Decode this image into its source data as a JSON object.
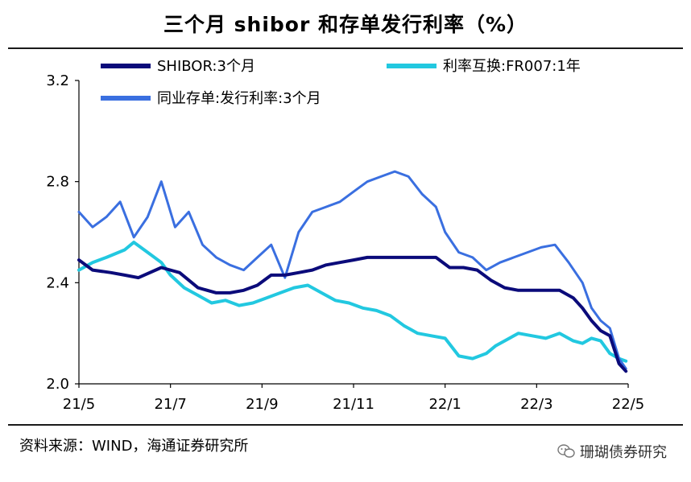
{
  "chart_data": {
    "type": "line",
    "title": "三个月 shibor 和存单发行利率（%）",
    "ylim": [
      2.0,
      3.2
    ],
    "yticks": [
      "2.0",
      "2.4",
      "2.8",
      "3.2"
    ],
    "xticks": [
      "21/5",
      "21/7",
      "21/9",
      "21/11",
      "22/1",
      "22/3",
      "22/5"
    ],
    "x_month_index_range": [
      0,
      12
    ],
    "legend_position": "top",
    "series": [
      {
        "name": "SHIBOR:3个月",
        "color": "#0b0b7a",
        "x": [
          0,
          0.3,
          0.7,
          1.0,
          1.3,
          1.8,
          2.2,
          2.6,
          3.0,
          3.3,
          3.6,
          3.9,
          4.2,
          4.5,
          4.8,
          5.1,
          5.4,
          5.7,
          6.0,
          6.3,
          6.6,
          6.9,
          7.2,
          7.5,
          7.8,
          8.1,
          8.4,
          8.7,
          9.0,
          9.3,
          9.6,
          9.9,
          10.2,
          10.5,
          10.8,
          11.0,
          11.2,
          11.4,
          11.6,
          11.8,
          11.95
        ],
        "y": [
          2.49,
          2.45,
          2.44,
          2.43,
          2.42,
          2.46,
          2.44,
          2.38,
          2.36,
          2.36,
          2.37,
          2.39,
          2.43,
          2.43,
          2.44,
          2.45,
          2.47,
          2.48,
          2.49,
          2.5,
          2.5,
          2.5,
          2.5,
          2.5,
          2.5,
          2.46,
          2.46,
          2.45,
          2.41,
          2.38,
          2.37,
          2.37,
          2.37,
          2.37,
          2.34,
          2.3,
          2.25,
          2.21,
          2.19,
          2.08,
          2.05
        ]
      },
      {
        "name": "利率互换:FR007:1年",
        "color": "#22c8e0",
        "x": [
          0,
          0.3,
          0.6,
          1.0,
          1.2,
          1.5,
          1.8,
          2.0,
          2.3,
          2.6,
          2.9,
          3.2,
          3.5,
          3.8,
          4.1,
          4.4,
          4.7,
          5.0,
          5.3,
          5.6,
          5.9,
          6.2,
          6.5,
          6.8,
          7.1,
          7.4,
          7.7,
          8.0,
          8.3,
          8.6,
          8.9,
          9.1,
          9.3,
          9.6,
          9.9,
          10.2,
          10.5,
          10.8,
          11.0,
          11.2,
          11.4,
          11.6,
          11.8,
          11.95
        ],
        "y": [
          2.45,
          2.48,
          2.5,
          2.53,
          2.56,
          2.52,
          2.48,
          2.43,
          2.38,
          2.35,
          2.32,
          2.33,
          2.31,
          2.32,
          2.34,
          2.36,
          2.38,
          2.39,
          2.36,
          2.33,
          2.32,
          2.3,
          2.29,
          2.27,
          2.23,
          2.2,
          2.19,
          2.18,
          2.11,
          2.1,
          2.12,
          2.15,
          2.17,
          2.2,
          2.19,
          2.18,
          2.2,
          2.17,
          2.16,
          2.18,
          2.17,
          2.12,
          2.1,
          2.09
        ]
      },
      {
        "name": "同业存单:发行利率:3个月",
        "color": "#3a6fe0",
        "x": [
          0,
          0.3,
          0.6,
          0.9,
          1.2,
          1.5,
          1.8,
          2.1,
          2.4,
          2.7,
          3.0,
          3.3,
          3.6,
          3.9,
          4.2,
          4.5,
          4.8,
          5.1,
          5.4,
          5.7,
          6.0,
          6.3,
          6.6,
          6.9,
          7.2,
          7.5,
          7.8,
          8.0,
          8.3,
          8.6,
          8.9,
          9.2,
          9.5,
          9.8,
          10.1,
          10.4,
          10.7,
          11.0,
          11.2,
          11.4,
          11.6,
          11.8,
          11.95
        ],
        "y": [
          2.68,
          2.62,
          2.66,
          2.72,
          2.58,
          2.66,
          2.8,
          2.62,
          2.68,
          2.55,
          2.5,
          2.47,
          2.45,
          2.5,
          2.55,
          2.42,
          2.6,
          2.68,
          2.7,
          2.72,
          2.76,
          2.8,
          2.82,
          2.84,
          2.82,
          2.75,
          2.7,
          2.6,
          2.52,
          2.5,
          2.45,
          2.48,
          2.5,
          2.52,
          2.54,
          2.55,
          2.48,
          2.4,
          2.3,
          2.25,
          2.22,
          2.1,
          2.06
        ]
      }
    ]
  },
  "source": "资料来源：WIND，海通证券研究所",
  "watermark": "珊瑚债券研究",
  "watermark_icon": "wechat-icon"
}
